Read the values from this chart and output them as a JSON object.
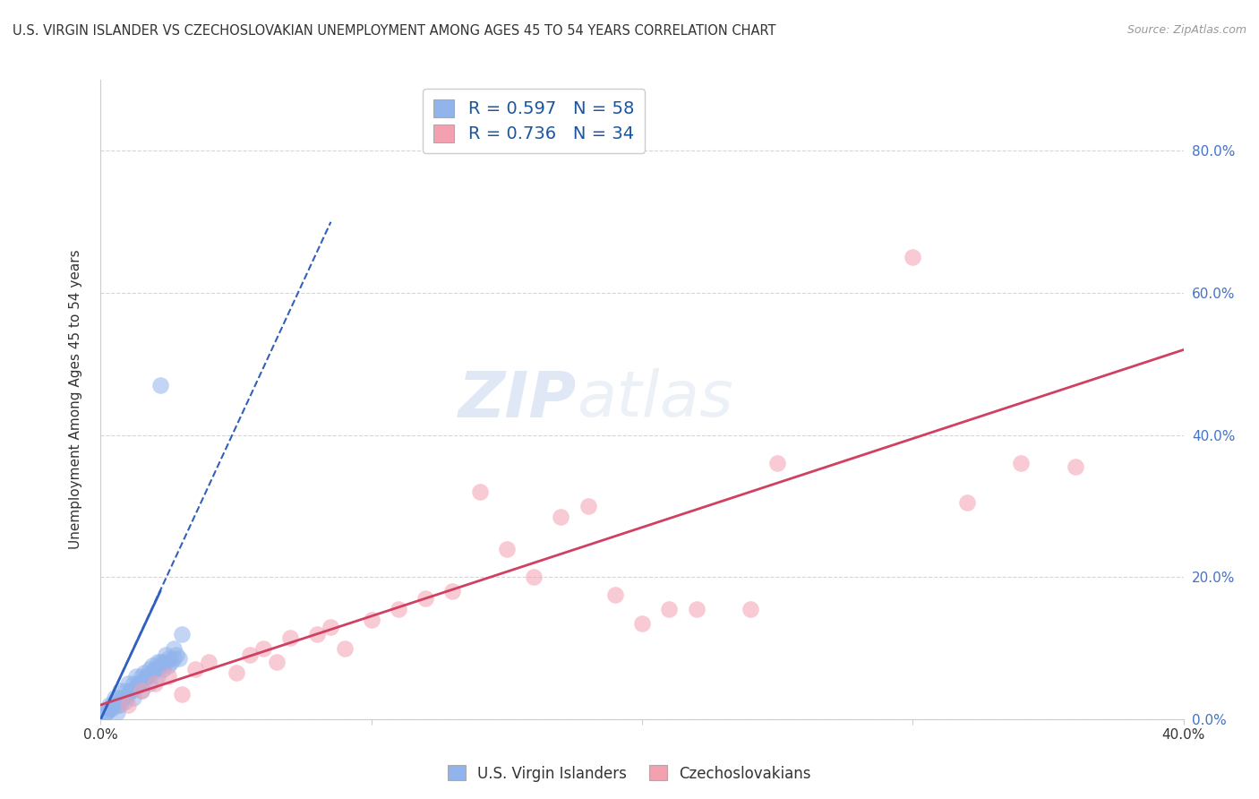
{
  "title": "U.S. VIRGIN ISLANDER VS CZECHOSLOVAKIAN UNEMPLOYMENT AMONG AGES 45 TO 54 YEARS CORRELATION CHART",
  "source": "Source: ZipAtlas.com",
  "ylabel": "Unemployment Among Ages 45 to 54 years",
  "xlim": [
    0.0,
    0.4
  ],
  "ylim": [
    0.0,
    0.9
  ],
  "x_ticks": [
    0.0,
    0.1,
    0.2,
    0.3,
    0.4
  ],
  "x_tick_labels": [
    "0.0%",
    "",
    "",
    "",
    "40.0%"
  ],
  "y_ticks_right": [
    0.0,
    0.2,
    0.4,
    0.6,
    0.8
  ],
  "y_tick_labels_right": [
    "0.0%",
    "20.0%",
    "40.0%",
    "60.0%",
    "80.0%"
  ],
  "legend1_label": "R = 0.597   N = 58",
  "legend2_label": "R = 0.736   N = 34",
  "legend_bottom1": "U.S. Virgin Islanders",
  "legend_bottom2": "Czechoslovakians",
  "blue_color": "#92b4ec",
  "pink_color": "#f4a0b0",
  "blue_line_color": "#3060c0",
  "pink_line_color": "#d04060",
  "watermark_zip": "ZIP",
  "watermark_atlas": "atlas",
  "blue_scatter_x": [
    0.002,
    0.003,
    0.004,
    0.005,
    0.006,
    0.007,
    0.008,
    0.009,
    0.01,
    0.011,
    0.012,
    0.013,
    0.014,
    0.015,
    0.016,
    0.017,
    0.018,
    0.019,
    0.02,
    0.021,
    0.022,
    0.023,
    0.024,
    0.025,
    0.026,
    0.027,
    0.028,
    0.029,
    0.003,
    0.005,
    0.007,
    0.01,
    0.013,
    0.016,
    0.019,
    0.022,
    0.025,
    0.001,
    0.002,
    0.004,
    0.006,
    0.008,
    0.011,
    0.014,
    0.017,
    0.02,
    0.023,
    0.003,
    0.006,
    0.009,
    0.012,
    0.015,
    0.018,
    0.021,
    0.024,
    0.027,
    0.022,
    0.03
  ],
  "blue_scatter_y": [
    0.01,
    0.015,
    0.02,
    0.025,
    0.01,
    0.02,
    0.03,
    0.025,
    0.035,
    0.04,
    0.03,
    0.045,
    0.05,
    0.04,
    0.055,
    0.06,
    0.05,
    0.065,
    0.07,
    0.06,
    0.075,
    0.07,
    0.08,
    0.075,
    0.08,
    0.085,
    0.09,
    0.085,
    0.015,
    0.03,
    0.04,
    0.05,
    0.06,
    0.065,
    0.075,
    0.08,
    0.085,
    0.005,
    0.01,
    0.015,
    0.02,
    0.03,
    0.04,
    0.05,
    0.06,
    0.07,
    0.08,
    0.02,
    0.03,
    0.04,
    0.05,
    0.06,
    0.07,
    0.08,
    0.09,
    0.1,
    0.47,
    0.12
  ],
  "pink_scatter_x": [
    0.01,
    0.015,
    0.02,
    0.025,
    0.03,
    0.035,
    0.04,
    0.05,
    0.055,
    0.06,
    0.065,
    0.07,
    0.08,
    0.085,
    0.09,
    0.1,
    0.11,
    0.12,
    0.13,
    0.14,
    0.15,
    0.16,
    0.17,
    0.18,
    0.19,
    0.2,
    0.21,
    0.22,
    0.24,
    0.25,
    0.3,
    0.32,
    0.34,
    0.36
  ],
  "pink_scatter_y": [
    0.02,
    0.04,
    0.05,
    0.06,
    0.035,
    0.07,
    0.08,
    0.065,
    0.09,
    0.1,
    0.08,
    0.115,
    0.12,
    0.13,
    0.1,
    0.14,
    0.155,
    0.17,
    0.18,
    0.32,
    0.24,
    0.2,
    0.285,
    0.3,
    0.175,
    0.135,
    0.155,
    0.155,
    0.155,
    0.36,
    0.65,
    0.305,
    0.36,
    0.355
  ],
  "blue_trend_x": [
    0.0,
    0.085
  ],
  "blue_trend_y": [
    0.0,
    0.7
  ],
  "pink_trend_x": [
    0.0,
    0.4
  ],
  "pink_trend_y": [
    0.02,
    0.52
  ],
  "background_color": "#ffffff",
  "grid_color": "#cccccc",
  "scatter_size": 180
}
